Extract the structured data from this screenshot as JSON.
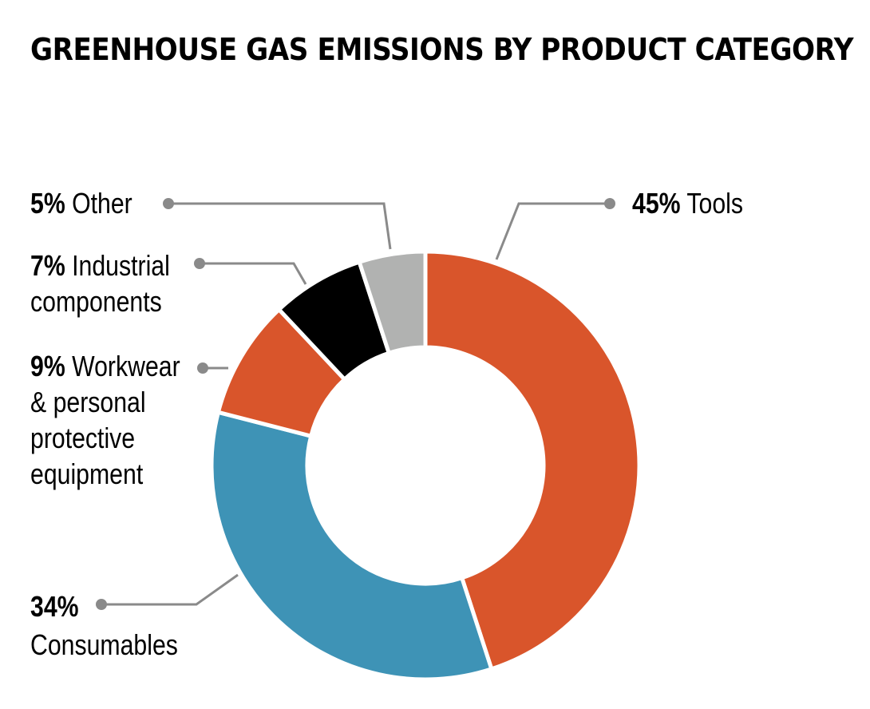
{
  "title": "GREENHOUSE GAS EMISSIONS BY PRODUCT CATEGORY",
  "chart_data": {
    "type": "pie",
    "variant": "donut",
    "title": "GREENHOUSE GAS EMISSIONS BY PRODUCT CATEGORY",
    "unit": "%",
    "categories": [
      "Tools",
      "Consumables",
      "Workwear & personal protective equipment",
      "Industrial components",
      "Other"
    ],
    "values": [
      45,
      34,
      9,
      7,
      5
    ],
    "colors": [
      "#d9552b",
      "#3e93b6",
      "#d9552b",
      "#000000",
      "#b1b2b1"
    ],
    "labels": [
      {
        "pct": "45%",
        "lines": [
          "Tools"
        ]
      },
      {
        "pct": "34%",
        "lines": [
          "",
          "Consumables"
        ]
      },
      {
        "pct": "9%",
        "lines": [
          "Workwear",
          "& personal",
          "protective",
          "equipment"
        ]
      },
      {
        "pct": "7%",
        "lines": [
          "Industrial",
          "components"
        ]
      },
      {
        "pct": "5%",
        "lines": [
          "Other"
        ]
      }
    ],
    "legend": "none (callout labels)",
    "leader_color": "#8a8a8a"
  }
}
